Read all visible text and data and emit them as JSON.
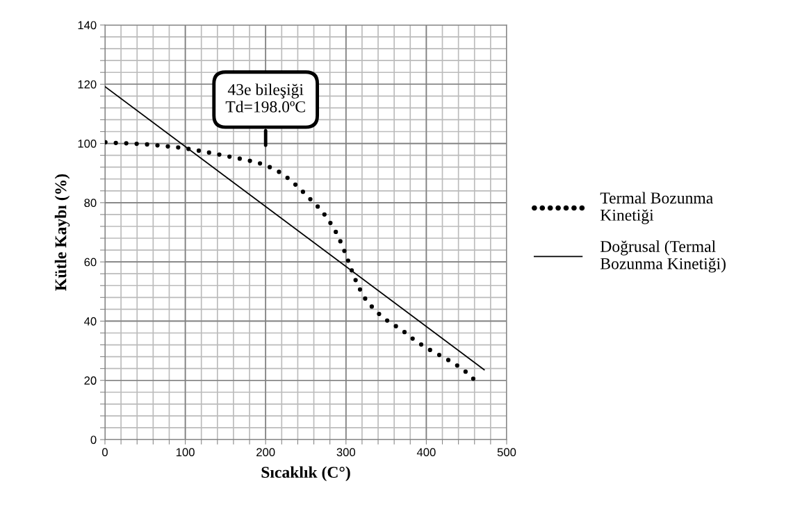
{
  "chart_data": {
    "type": "line",
    "xlabel": "Sıcaklık (C°)",
    "ylabel": "Kütle Kaybı (%)",
    "xlim": [
      0,
      500
    ],
    "ylim": [
      0,
      140
    ],
    "xticks": [
      0,
      {
        "value": 20,
        "label": null
      },
      {
        "value": 40,
        "label": null
      },
      {
        "value": 60,
        "label": null
      },
      {
        "value": 80,
        "label": null
      },
      100,
      {
        "value": 120,
        "label": null
      },
      {
        "value": 140,
        "label": null
      },
      {
        "value": 160,
        "label": null
      },
      {
        "value": 180,
        "label": null
      },
      200,
      {
        "value": 220,
        "label": null
      },
      {
        "value": 240,
        "label": null
      },
      {
        "value": 260,
        "label": null
      },
      {
        "value": 280,
        "label": null
      },
      300,
      {
        "value": 320,
        "label": null
      },
      {
        "value": 340,
        "label": null
      },
      {
        "value": 360,
        "label": null
      },
      {
        "value": 380,
        "label": null
      },
      400,
      {
        "value": 420,
        "label": null
      },
      {
        "value": 440,
        "label": null
      },
      {
        "value": 460,
        "label": null
      },
      {
        "value": 480,
        "label": null
      },
      500
    ],
    "yticks": [
      0,
      {
        "value": 4,
        "label": null
      },
      {
        "value": 8,
        "label": null
      },
      {
        "value": 12,
        "label": null
      },
      {
        "value": 16,
        "label": null
      },
      20,
      {
        "value": 24,
        "label": null
      },
      {
        "value": 28,
        "label": null
      },
      {
        "value": 32,
        "label": null
      },
      {
        "value": 36,
        "label": null
      },
      40,
      {
        "value": 44,
        "label": null
      },
      {
        "value": 48,
        "label": null
      },
      {
        "value": 52,
        "label": null
      },
      {
        "value": 56,
        "label": null
      },
      60,
      {
        "value": 64,
        "label": null
      },
      {
        "value": 68,
        "label": null
      },
      {
        "value": 72,
        "label": null
      },
      {
        "value": 76,
        "label": null
      },
      80,
      {
        "value": 84,
        "label": null
      },
      {
        "value": 88,
        "label": null
      },
      {
        "value": 92,
        "label": null
      },
      {
        "value": 96,
        "label": null
      },
      100,
      {
        "value": 104,
        "label": null
      },
      {
        "value": 108,
        "label": null
      },
      {
        "value": 112,
        "label": null
      },
      {
        "value": 116,
        "label": null
      },
      120,
      {
        "value": 124,
        "label": null
      },
      {
        "value": 128,
        "label": null
      },
      {
        "value": 132,
        "label": null
      },
      {
        "value": 136,
        "label": null
      },
      140
    ],
    "grid": true,
    "legend": "right",
    "annotations": [
      "43e bileşiği\nTd=198.0ºC"
    ],
    "series": [
      {
        "name": "Termal Bozunma Kinetiği",
        "color": "#000000",
        "line_style": "dotted",
        "marker": "none",
        "x": [
          0.6,
          11.5,
          22.8,
          33.7,
          45,
          56.2,
          67.5,
          78.7,
          90,
          101,
          111.9,
          122.8,
          133.8,
          145,
          156,
          167,
          178,
          188.9,
          200.4,
          210.8,
          220.6,
          229.5,
          237.9,
          246,
          254,
          262,
          269.6,
          276.6,
          282.9,
          288.7,
          293.3,
          297.6,
          301.9,
          305.6,
          309.7,
          314,
          319.2,
          325,
          332.2,
          340,
          348.6,
          357.9,
          367.4,
          376.3,
          385.2,
          394.2,
          400.8,
          410.6,
          420.2,
          430.2,
          439.7,
          449,
          457.6,
          466.5
        ],
        "values": [
          100.4,
          100.2,
          100.1,
          100,
          99.8,
          99.6,
          99.3,
          99,
          98.7,
          98.3,
          97.8,
          97.3,
          96.7,
          96.1,
          95.5,
          94.9,
          94.3,
          93.6,
          92.6,
          91.3,
          89.8,
          87.9,
          85.9,
          83.8,
          81.6,
          79.5,
          77.3,
          74.8,
          72.2,
          69.5,
          66.8,
          64,
          61,
          58.2,
          55.4,
          52.5,
          49.8,
          47.1,
          44.9,
          42.7,
          40.7,
          39,
          37.4,
          35.6,
          33.6,
          32,
          30.8,
          29.4,
          28,
          26.4,
          24.8,
          22.9,
          20.7,
          19.1
        ]
      },
      {
        "name": "Doğrusal (Termal Bozunma Kinetiği)",
        "color": "#000000",
        "line_style": "solid",
        "marker": "none",
        "x": [
          0,
          472
        ],
        "values": [
          119.2,
          23.6
        ]
      }
    ]
  }
}
